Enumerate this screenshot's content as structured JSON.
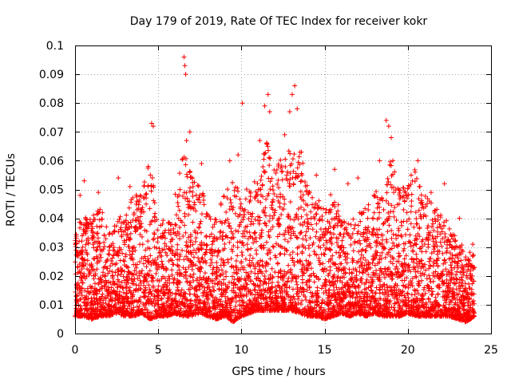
{
  "chart_data": {
    "type": "scatter",
    "title": "Day 179 of 2019, Rate Of TEC Index for receiver kokr",
    "xlabel": "GPS time / hours",
    "ylabel": "ROTI / TECUs",
    "xlim": [
      0,
      25
    ],
    "ylim": [
      0,
      0.1
    ],
    "x_ticks": [
      0,
      5,
      10,
      15,
      20,
      25
    ],
    "x_tick_labels": [
      "0",
      "5",
      "10",
      "15",
      "20",
      "25"
    ],
    "y_ticks": [
      0,
      0.01,
      0.02,
      0.03,
      0.04,
      0.05,
      0.06,
      0.07,
      0.08,
      0.09,
      0.1
    ],
    "y_tick_labels": [
      "0",
      "0.01",
      "0.02",
      "0.03",
      "0.04",
      "0.05",
      "0.06",
      "0.07",
      "0.08",
      "0.09",
      "0.1"
    ],
    "grid": true,
    "marker": "+",
    "color": "#ff0000",
    "series": [
      {
        "name": "ROTI",
        "note": "dense cloud; representative points read from the plot (hours, TECU)",
        "envelope": {
          "x": [
            0,
            0.5,
            1,
            1.5,
            2,
            2.5,
            3,
            3.5,
            4,
            4.5,
            5,
            5.5,
            6,
            6.5,
            7,
            7.5,
            8,
            8.5,
            9,
            9.5,
            10,
            10.5,
            11,
            11.5,
            12,
            12.5,
            13,
            13.5,
            14,
            14.5,
            15,
            15.5,
            16,
            16.5,
            17,
            17.5,
            18,
            18.5,
            19,
            19.5,
            20,
            20.5,
            21,
            21.5,
            22,
            22.5,
            23,
            23.5,
            24
          ],
          "upper": [
            0.035,
            0.043,
            0.04,
            0.045,
            0.035,
            0.04,
            0.045,
            0.048,
            0.05,
            0.06,
            0.04,
            0.042,
            0.048,
            0.065,
            0.058,
            0.052,
            0.045,
            0.04,
            0.05,
            0.055,
            0.048,
            0.052,
            0.055,
            0.068,
            0.058,
            0.062,
            0.066,
            0.064,
            0.052,
            0.048,
            0.045,
            0.05,
            0.045,
            0.04,
            0.042,
            0.045,
            0.052,
            0.048,
            0.062,
            0.05,
            0.052,
            0.058,
            0.048,
            0.045,
            0.042,
            0.038,
            0.033,
            0.03,
            0.028
          ],
          "lower": [
            0.006,
            0.006,
            0.005,
            0.006,
            0.006,
            0.007,
            0.006,
            0.006,
            0.007,
            0.005,
            0.006,
            0.006,
            0.007,
            0.006,
            0.006,
            0.007,
            0.006,
            0.005,
            0.006,
            0.004,
            0.006,
            0.007,
            0.008,
            0.008,
            0.008,
            0.008,
            0.008,
            0.007,
            0.006,
            0.006,
            0.005,
            0.006,
            0.007,
            0.006,
            0.007,
            0.006,
            0.007,
            0.006,
            0.006,
            0.006,
            0.007,
            0.006,
            0.006,
            0.006,
            0.006,
            0.006,
            0.005,
            0.004,
            0.006
          ]
        },
        "outliers": {
          "x": [
            0.3,
            0.55,
            1.4,
            2.6,
            3.3,
            4.4,
            4.6,
            4.7,
            6.55,
            6.6,
            6.65,
            6.7,
            6.9,
            7.6,
            9.3,
            9.8,
            10.05,
            11.1,
            11.4,
            11.6,
            11.7,
            12.6,
            12.9,
            13.05,
            13.2,
            13.35,
            13.6,
            14.5,
            15.6,
            16.4,
            17.0,
            18.3,
            18.7,
            18.85,
            19.0,
            19.1,
            20.2,
            20.6,
            21.4,
            22.2,
            23.1,
            23.9
          ],
          "y": [
            0.048,
            0.053,
            0.049,
            0.054,
            0.051,
            0.058,
            0.073,
            0.072,
            0.096,
            0.093,
            0.09,
            0.067,
            0.07,
            0.059,
            0.06,
            0.062,
            0.08,
            0.067,
            0.079,
            0.083,
            0.077,
            0.069,
            0.077,
            0.083,
            0.086,
            0.078,
            0.063,
            0.055,
            0.057,
            0.052,
            0.054,
            0.06,
            0.074,
            0.072,
            0.068,
            0.06,
            0.055,
            0.06,
            0.049,
            0.052,
            0.04,
            0.031
          ]
        }
      }
    ]
  }
}
